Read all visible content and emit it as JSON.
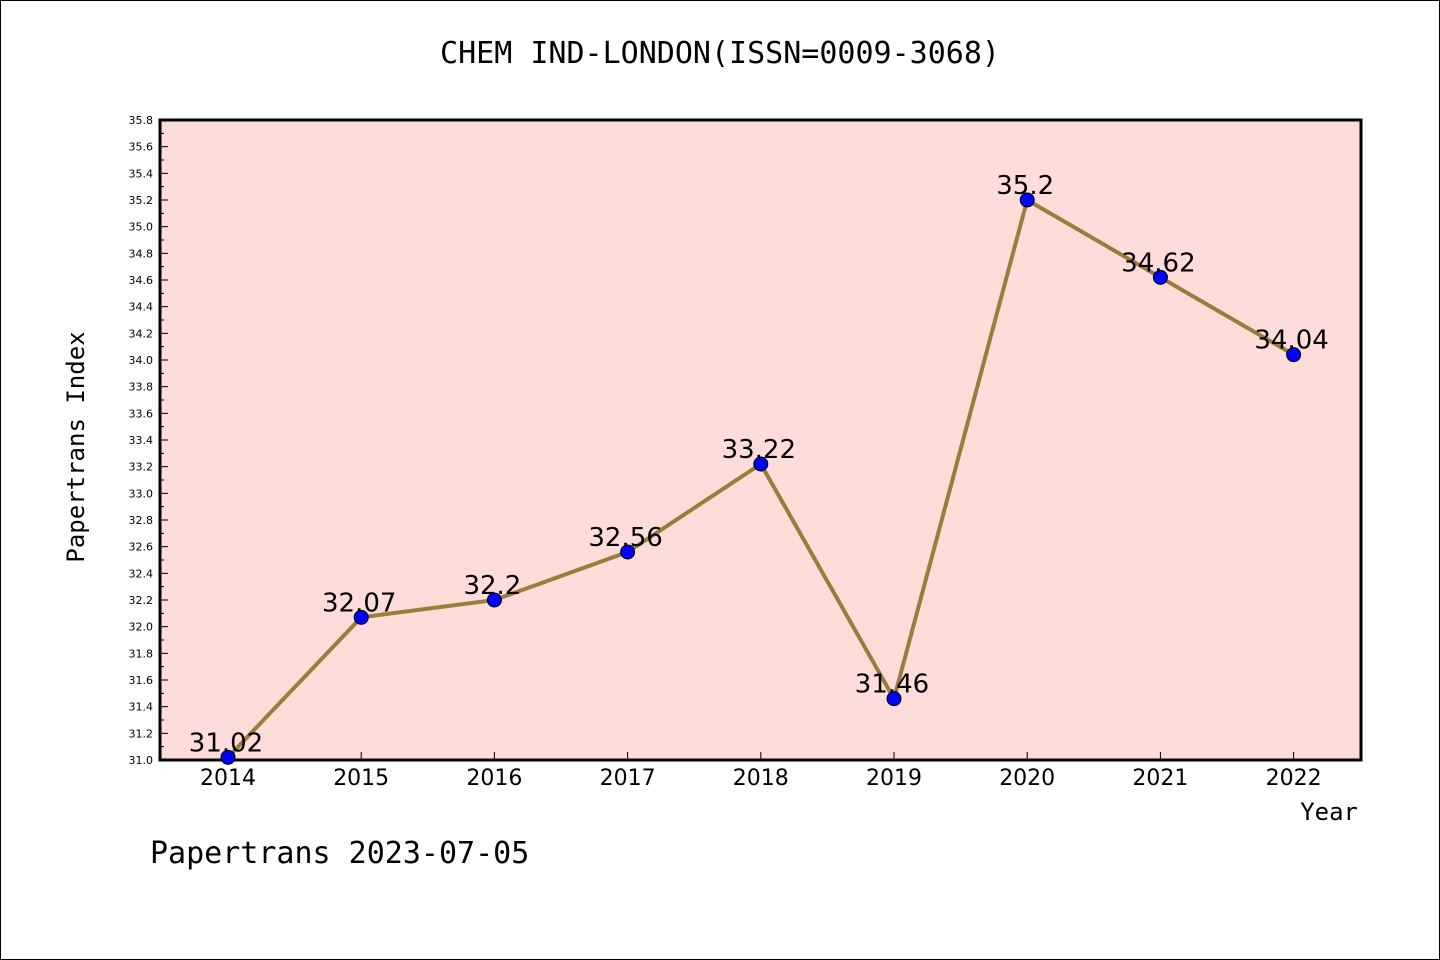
{
  "chart_data": {
    "type": "line",
    "title": "CHEM IND-LONDON(ISSN=0009-3068)",
    "xlabel": "Year",
    "ylabel": "Papertrans Index",
    "categories": [
      "2014",
      "2015",
      "2016",
      "2017",
      "2018",
      "2019",
      "2020",
      "2021",
      "2022"
    ],
    "values": [
      31.02,
      32.07,
      32.2,
      32.56,
      33.22,
      31.46,
      35.2,
      34.62,
      34.04
    ],
    "data_labels": [
      "31.02",
      "32.07",
      "32.2",
      "32.56",
      "33.22",
      "31.46",
      "35.2",
      "34.62",
      "34.04"
    ],
    "ylim": [
      31.0,
      35.8
    ],
    "ytick_step": 0.2,
    "grid": false,
    "colors": {
      "plot_background": "#fddcd9",
      "line": "#9a7d3a",
      "marker": "#0000ff"
    }
  },
  "footer": "Papertrans 2023-07-05"
}
